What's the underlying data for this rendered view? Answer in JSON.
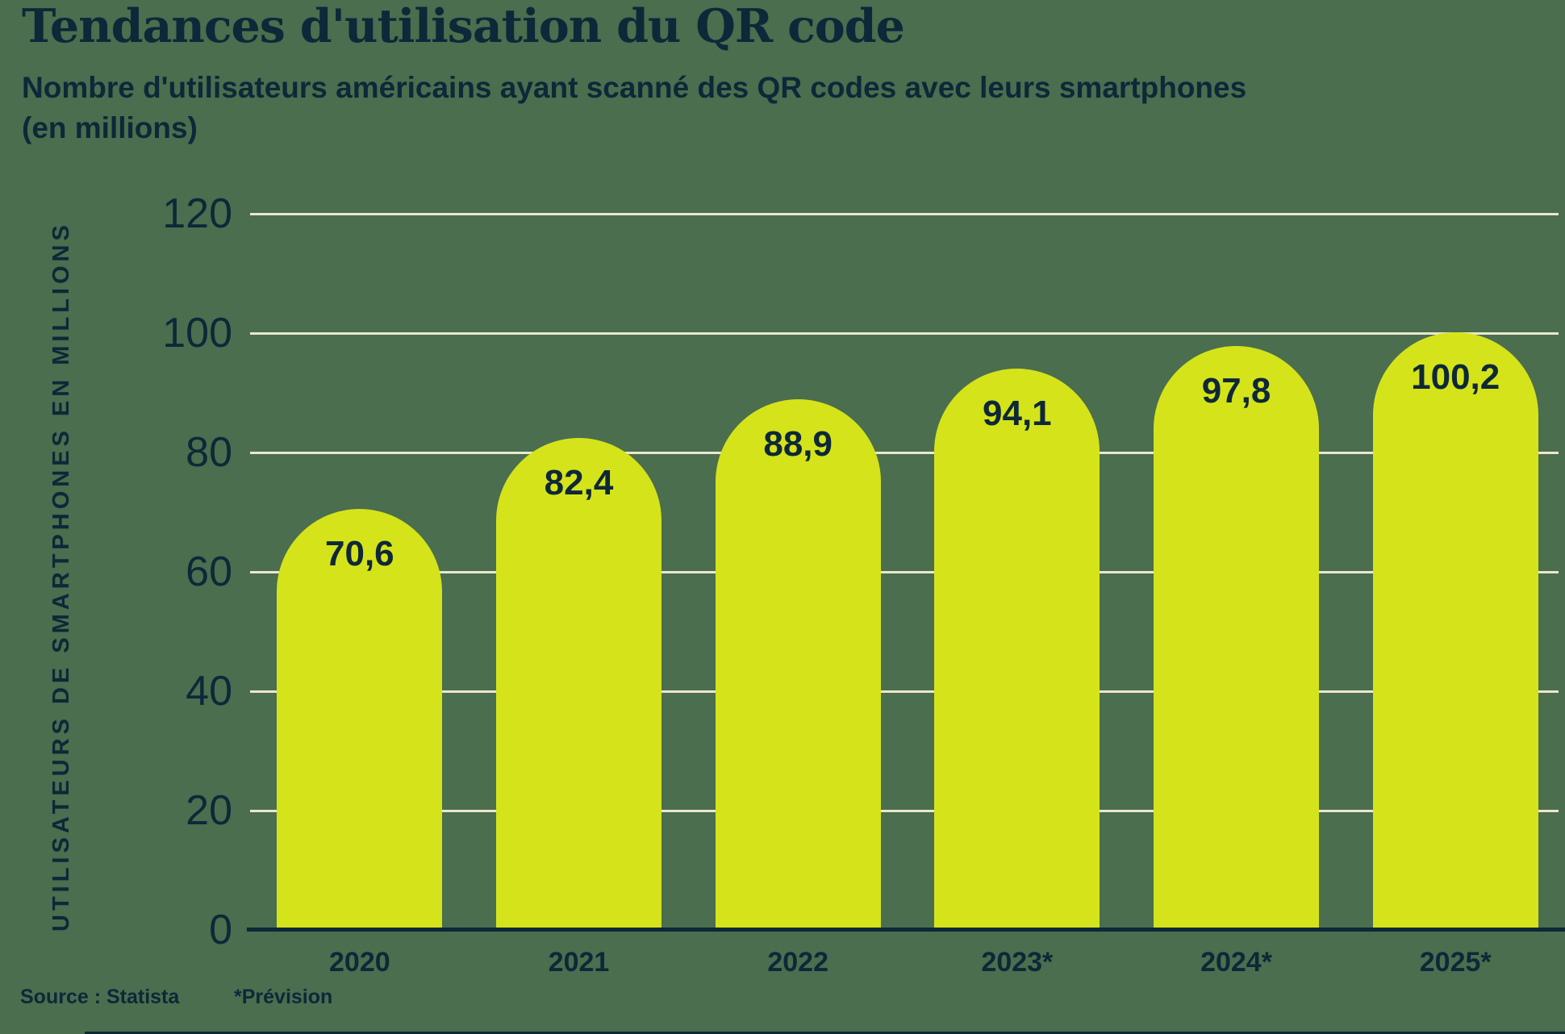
{
  "title": "Tendances d'utilisation du QR code",
  "subtitle_line1": "Nombre d'utilisateurs américains ayant scanné des QR codes avec leurs smartphones",
  "subtitle_line2": "(en millions)",
  "source": "Source : Statista",
  "footnote": "*Prévision",
  "colors": {
    "background": "#4a6e4e",
    "bar": "#d5e31a",
    "text": "#0d2838",
    "gridline": "#ece7cd"
  },
  "chart_data": {
    "type": "bar",
    "title": "Tendances d'utilisation du QR code",
    "subtitle": "Nombre d'utilisateurs américains ayant scanné des QR codes avec leurs smartphones (en millions)",
    "categories": [
      "2020",
      "2021",
      "2022",
      "2023*",
      "2024*",
      "2025*"
    ],
    "values": [
      70.6,
      82.4,
      88.9,
      94.1,
      97.8,
      100.2
    ],
    "value_labels": [
      "70,6",
      "82,4",
      "88,9",
      "94,1",
      "97,8",
      "100,2"
    ],
    "xlabel": "",
    "ylabel": "UTILISATEURS DE SMARTPHONES EN MILLIONS",
    "ylim": [
      0,
      120
    ],
    "yticks": [
      0,
      20,
      40,
      60,
      80,
      100,
      120
    ],
    "grid": true,
    "legend": false,
    "bar_color": "#d5e31a",
    "bar_corner": "fully-rounded-top"
  }
}
